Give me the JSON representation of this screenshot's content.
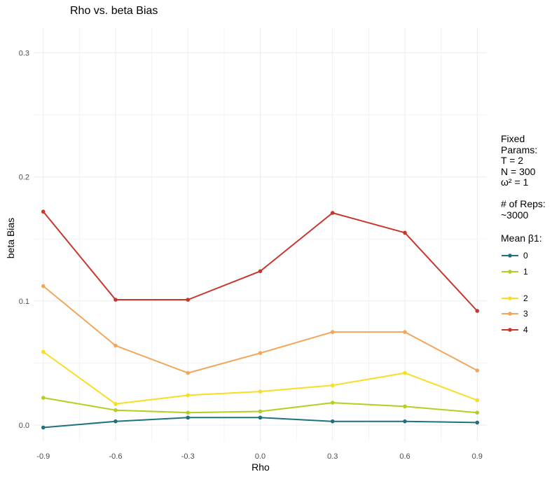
{
  "chart_data": {
    "type": "line",
    "title": "Rho vs. beta Bias",
    "xlabel": "Rho",
    "ylabel": "beta Bias",
    "x": [
      -0.9,
      -0.6,
      -0.3,
      0.0,
      0.3,
      0.6,
      0.9
    ],
    "x_tick_labels": [
      "-0.9",
      "-0.6",
      "-0.3",
      "0.0",
      "0.3",
      "0.6",
      "0.9"
    ],
    "y_ticks": [
      0.0,
      0.1,
      0.2,
      0.3
    ],
    "y_tick_labels": [
      "0.0",
      "0.1",
      "0.2",
      "0.3"
    ],
    "xlim": [
      -0.94,
      0.94
    ],
    "ylim": [
      -0.013,
      0.32
    ],
    "grid": true,
    "legend_position": "right",
    "legend_text": "Fixed\nParams:\nT = 2\nN = 300\nω² = 1\n\n# of Reps:\n~3000",
    "legend_title": "Mean β1:",
    "series": [
      {
        "name": "0",
        "color": "#21707F",
        "values": [
          -0.002,
          0.003,
          0.006,
          0.006,
          0.003,
          0.003,
          0.002
        ]
      },
      {
        "name": "1",
        "color": "#B5CF1E",
        "values": [
          0.022,
          0.012,
          0.01,
          0.011,
          0.018,
          0.015,
          0.01
        ]
      },
      {
        "name": "2",
        "color": "#F8DE22",
        "values": [
          0.059,
          0.017,
          0.024,
          0.027,
          0.032,
          0.042,
          0.02
        ]
      },
      {
        "name": "3",
        "color": "#F2A65A",
        "values": [
          0.112,
          0.064,
          0.042,
          0.058,
          0.075,
          0.075,
          0.044
        ]
      },
      {
        "name": "4",
        "color": "#C8352B",
        "values": [
          0.172,
          0.101,
          0.101,
          0.124,
          0.171,
          0.155,
          0.092
        ]
      }
    ]
  }
}
